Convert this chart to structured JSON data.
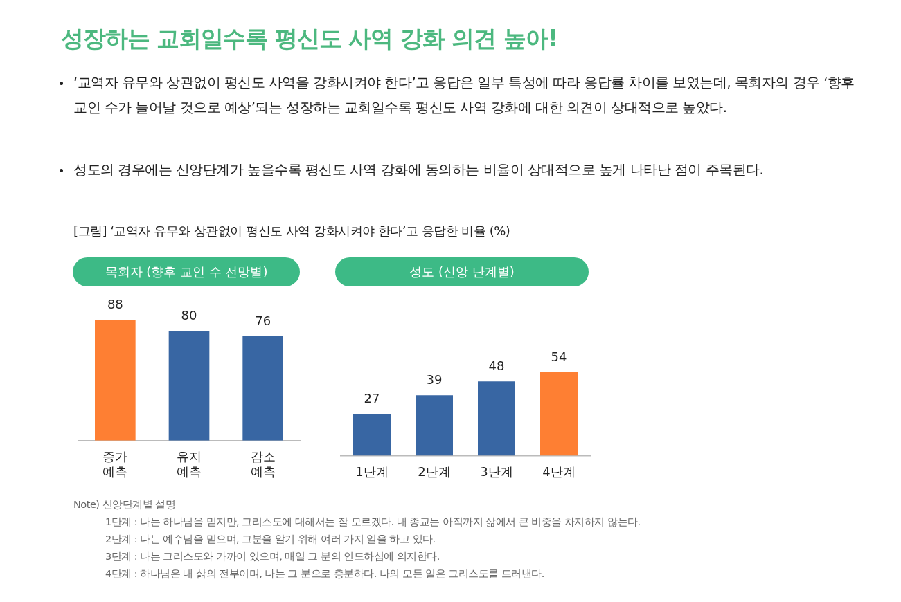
{
  "chart_data": [
    {
      "type": "other",
      "title": "성장하는 교회일수록 평신도 사역 강화 의견 높아!",
      "annotations": [
        "‘교역자 유무와 상관없이 평신도 사역을 강화시켜야 한다’고 응답은 일부 특성에 따라 응답률 차이를 보였는데, 목회자의 경우 ‘향후 교인 수가 늘어날 것으로 예상’되는 성장하는 교회일수록 평신도 사역 강화에 대한 의견이 상대적으로 높았다.",
        "성도의 경우에는 신앙단계가 높을수록 평신도 사역 강화에 동의하는 비율이 상대적으로 높게 나타난 점이 주목된다.",
        "[그림] ‘교역자 유무와 상관없이 평신도 사역 강화시켜야 한다’고 응답한 비율 (%)"
      ]
    },
    {
      "type": "bar",
      "title": "목회자 (향후 교인 수 전망별)",
      "categories": [
        "증가 예측",
        "유지 예측",
        "감소 예측"
      ],
      "values": [
        88,
        80,
        76
      ],
      "colors": [
        "#fe7f33",
        "#3866a3",
        "#3866a3"
      ],
      "data_labels": true
    },
    {
      "type": "bar",
      "title": "성도 (신앙 단계별)",
      "categories": [
        "1단계",
        "2단계",
        "3단계",
        "4단계"
      ],
      "values": [
        27,
        39,
        48,
        54
      ],
      "colors": [
        "#3866a3",
        "#3866a3",
        "#3866a3",
        "#fe7f33"
      ],
      "data_labels": true,
      "annotations": [
        "Note) 신앙단계별 설명",
        "1단계 : 나는 하나님을 믿지만, 그리스도에 대해서는 잘 모르겠다. 내 종교는 아직까지 삶에서 큰 비중을 차지하지 않는다.",
        "2단계 : 나는 예수님을 믿으며, 그분을 알기 위해 여러 가지 일을 하고 있다.",
        "3단계 : 나는 그리스도와 가까이 있으며, 매일 그 분의 인도하심에 의지한다.",
        "4단계 : 하나님은 내 삶의 전부이며, 나는 그 분으로 충분하다. 나의 모든 일은 그리스도를 드러낸다."
      ]
    }
  ]
}
